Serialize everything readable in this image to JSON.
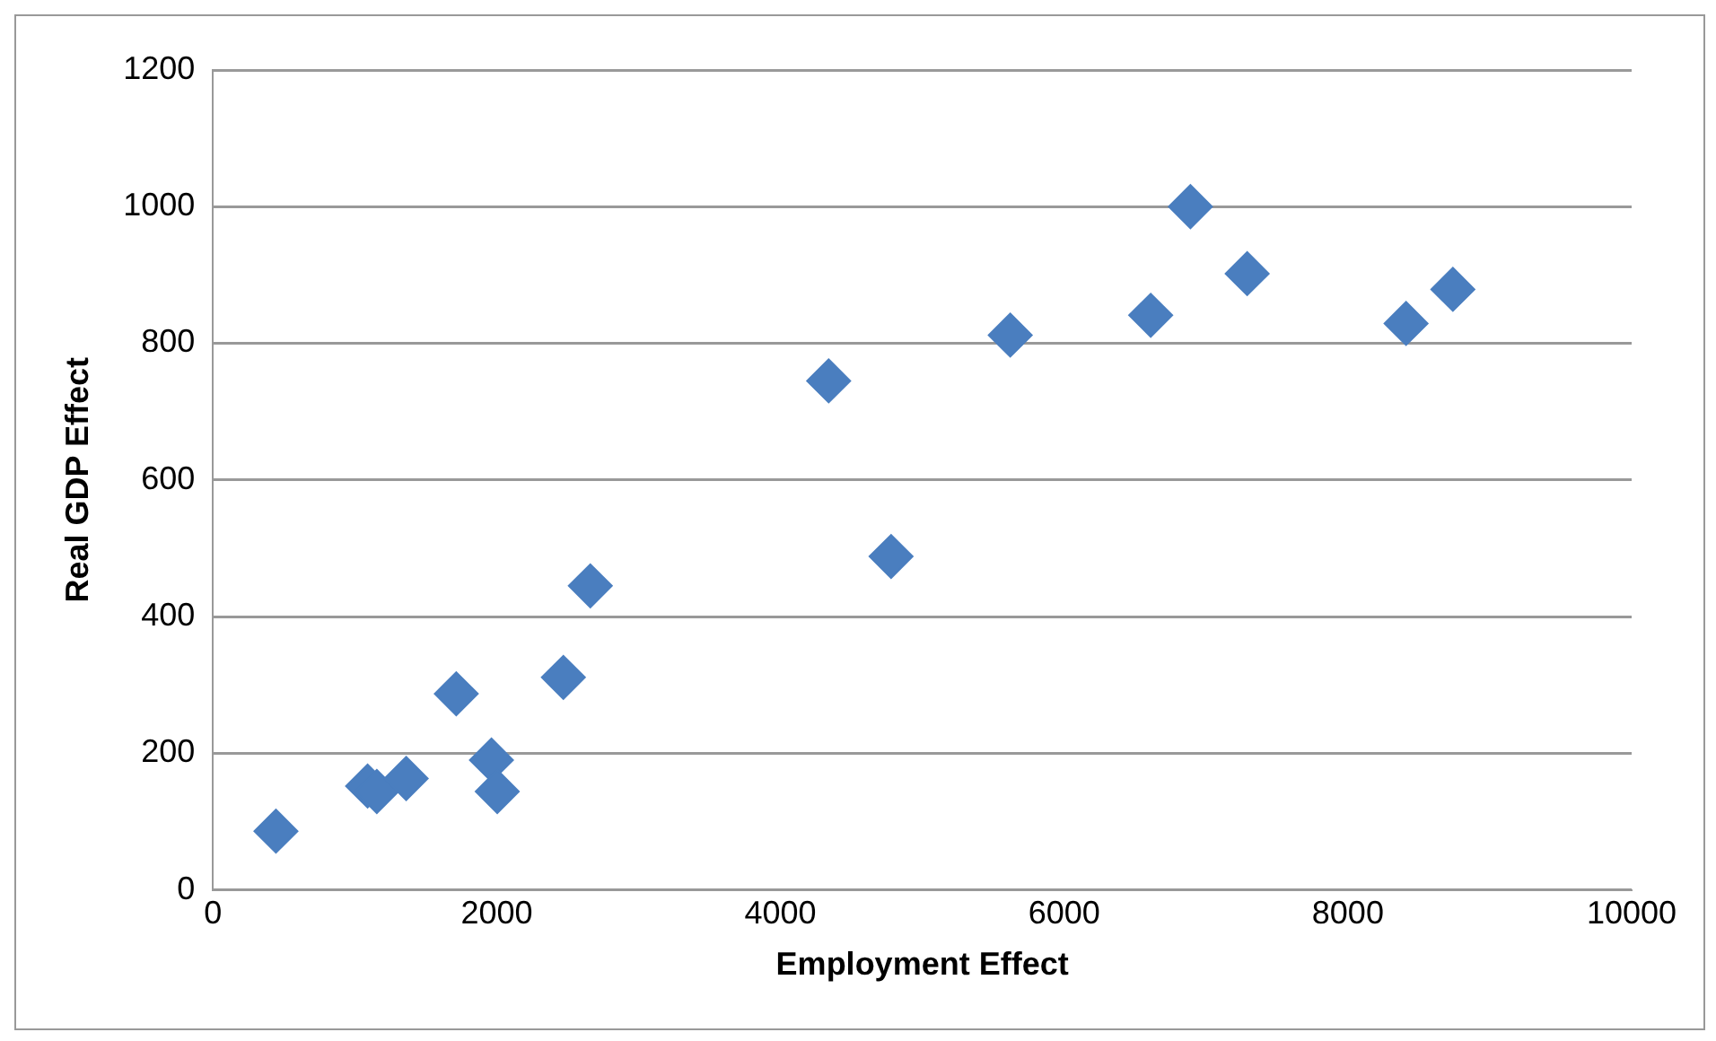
{
  "chart_data": {
    "type": "scatter",
    "xlabel": "Employment Effect",
    "ylabel": "Real GDP Effect",
    "x": [
      444,
      1090,
      1155,
      1362,
      1715,
      1963,
      2004,
      2470,
      2660,
      4340,
      4780,
      5620,
      6610,
      6890,
      7290,
      8410,
      8740
    ],
    "values": [
      86,
      152,
      144,
      163,
      287,
      190,
      144,
      311,
      445,
      745,
      488,
      812,
      841,
      1000,
      902,
      829,
      879
    ],
    "color": "#4a7ebf",
    "marker": "diamond",
    "xlim": [
      0,
      10000
    ],
    "xticks": [
      0,
      2000,
      4000,
      6000,
      8000,
      10000
    ],
    "ylim": [
      0,
      1200
    ],
    "yticks": [
      0,
      200,
      400,
      600,
      800,
      1000,
      1200
    ],
    "grid": "y",
    "legend": false
  }
}
